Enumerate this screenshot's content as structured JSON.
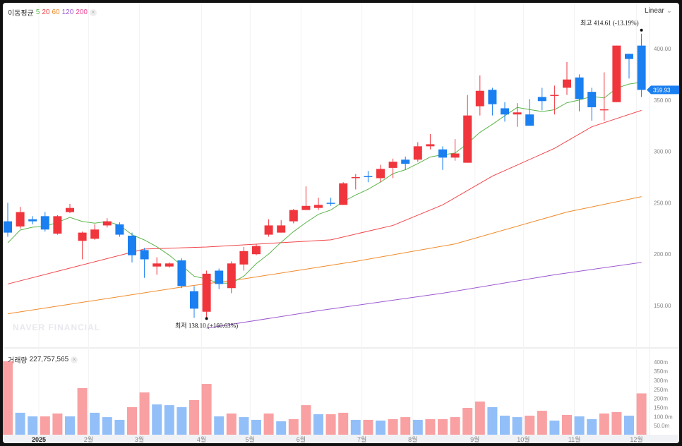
{
  "legend": {
    "label": "이동평균",
    "periods": [
      {
        "p": "5",
        "color": "#5bb54a"
      },
      {
        "p": "20",
        "color": "#f0454a"
      },
      {
        "p": "60",
        "color": "#f08a2a"
      },
      {
        "p": "120",
        "color": "#9b59d0"
      },
      {
        "p": "200",
        "color": "#e84393"
      }
    ],
    "close": "×"
  },
  "scale_mode": "Linear",
  "watermark": "NAVER FINANCIAL",
  "volume_legend": {
    "label": "거래량",
    "value": "227,757,565",
    "close": "×"
  },
  "chart_data": {
    "type": "candlestick",
    "colors": {
      "up": "#f0353d",
      "down": "#1a7ff0",
      "up_vol": "#f9a0a2",
      "down_vol": "#93bff8"
    },
    "ohlc": [
      [
        232,
        250,
        217,
        221
      ],
      [
        227,
        246,
        225,
        241
      ],
      [
        234,
        237,
        229,
        232
      ],
      [
        237,
        241,
        222,
        224
      ],
      [
        220,
        238,
        219,
        237
      ],
      [
        241,
        249,
        240,
        245
      ],
      [
        213,
        222,
        195,
        221
      ],
      [
        215,
        229,
        214,
        224
      ],
      [
        228,
        235,
        226,
        232
      ],
      [
        229,
        231,
        217,
        219
      ],
      [
        218,
        221,
        192,
        199
      ],
      [
        204,
        206,
        177,
        195
      ],
      [
        188,
        197,
        180,
        191
      ],
      [
        188,
        192,
        187,
        191
      ],
      [
        194,
        196,
        167,
        169
      ],
      [
        164,
        169,
        138,
        147
      ],
      [
        144,
        184,
        138.1,
        181
      ],
      [
        184,
        186,
        166,
        171
      ],
      [
        167,
        193,
        162,
        191
      ],
      [
        190,
        207,
        184,
        203
      ],
      [
        200,
        210,
        199,
        208
      ],
      [
        219,
        234,
        217,
        228
      ],
      [
        221,
        233,
        221,
        228
      ],
      [
        232,
        244,
        230,
        243
      ],
      [
        243,
        266,
        243,
        247
      ],
      [
        245,
        255,
        243,
        248
      ],
      [
        250,
        255,
        247,
        249
      ],
      [
        248,
        270,
        248,
        269
      ],
      [
        274,
        278,
        263,
        275
      ],
      [
        276,
        281,
        270,
        275
      ],
      [
        274,
        287,
        270,
        283
      ],
      [
        284,
        293,
        274,
        290
      ],
      [
        292,
        295,
        282,
        288
      ],
      [
        292,
        309,
        290,
        305
      ],
      [
        305,
        317,
        302,
        307
      ],
      [
        302,
        305,
        282,
        294
      ],
      [
        294,
        312,
        291,
        298
      ],
      [
        289,
        355,
        289,
        335
      ],
      [
        344,
        374,
        335,
        359
      ],
      [
        360,
        362,
        335,
        346
      ],
      [
        342,
        348,
        329,
        336
      ],
      [
        336,
        347,
        324,
        338
      ],
      [
        336,
        351,
        325,
        325
      ],
      [
        353,
        362,
        340,
        349
      ],
      [
        354,
        364,
        336,
        355
      ],
      [
        362,
        387,
        355,
        370
      ],
      [
        372,
        375,
        339,
        351
      ],
      [
        358,
        362,
        330,
        343
      ],
      [
        340,
        377,
        330,
        341
      ],
      [
        348,
        403,
        348,
        403
      ],
      [
        395,
        395,
        371,
        390
      ],
      [
        403,
        414.61,
        353,
        359.93
      ]
    ],
    "volume_m": [
      405,
      121,
      101,
      101,
      117,
      101,
      257,
      121,
      97,
      82,
      152,
      233,
      167,
      163,
      152,
      191,
      280,
      101,
      117,
      97,
      82,
      117,
      74,
      86,
      163,
      113,
      113,
      121,
      82,
      82,
      78,
      86,
      97,
      82,
      86,
      86,
      97,
      148,
      183,
      152,
      105,
      97,
      105,
      132,
      78,
      109,
      101,
      86,
      117,
      125,
      105,
      227.76
    ],
    "volume_dir": [
      "u",
      "d",
      "d",
      "u",
      "u",
      "d",
      "u",
      "d",
      "d",
      "d",
      "u",
      "u",
      "d",
      "d",
      "d",
      "u",
      "u",
      "d",
      "u",
      "d",
      "d",
      "u",
      "d",
      "u",
      "u",
      "d",
      "u",
      "u",
      "d",
      "u",
      "d",
      "u",
      "u",
      "d",
      "u",
      "u",
      "u",
      "u",
      "u",
      "d",
      "d",
      "d",
      "u",
      "u",
      "d",
      "u",
      "d",
      "d",
      "u",
      "u",
      "d",
      "u"
    ],
    "ma20": [
      [
        0,
        171
      ],
      [
        11,
        205
      ],
      [
        16,
        207
      ],
      [
        26,
        214
      ],
      [
        31,
        228
      ],
      [
        35,
        248
      ],
      [
        39,
        276
      ],
      [
        44,
        303
      ],
      [
        47,
        324
      ],
      [
        51,
        340
      ]
    ],
    "ma60": [
      [
        0,
        142
      ],
      [
        14,
        168
      ],
      [
        19,
        176
      ],
      [
        28,
        193
      ],
      [
        36,
        210
      ],
      [
        45,
        241
      ],
      [
        51,
        256
      ]
    ],
    "ma120": [
      [
        16,
        128
      ],
      [
        25,
        145
      ],
      [
        35,
        162
      ],
      [
        44,
        180
      ],
      [
        51,
        192
      ]
    ],
    "ylim": [
      120,
      425
    ],
    "yticks": [
      "400.00",
      "350.00",
      "300.00",
      "250.00",
      "200.00",
      "150.00"
    ],
    "vol_ticks": [
      "400m",
      "350m",
      "300m",
      "250m",
      "200m",
      "150m",
      "100.0m",
      "50.0m"
    ],
    "xticks": [
      {
        "i": 2.5,
        "label": "2025"
      },
      {
        "i": 6.5,
        "label": "2월"
      },
      {
        "i": 10.6,
        "label": "3월"
      },
      {
        "i": 15.6,
        "label": "4월"
      },
      {
        "i": 19.5,
        "label": "5월"
      },
      {
        "i": 23.6,
        "label": "6월"
      },
      {
        "i": 28.5,
        "label": "7월"
      },
      {
        "i": 32.6,
        "label": "8월"
      },
      {
        "i": 37.6,
        "label": "9월"
      },
      {
        "i": 41.5,
        "label": "10월"
      },
      {
        "i": 45.6,
        "label": "11월"
      },
      {
        "i": 50.6,
        "label": "12월"
      }
    ],
    "current_price": "359.93",
    "high_annotation": {
      "label": "최고",
      "value": "414.61 (-13.19%)"
    },
    "low_annotation": {
      "label": "최저",
      "value": "138.10 (+160.63%)"
    }
  }
}
